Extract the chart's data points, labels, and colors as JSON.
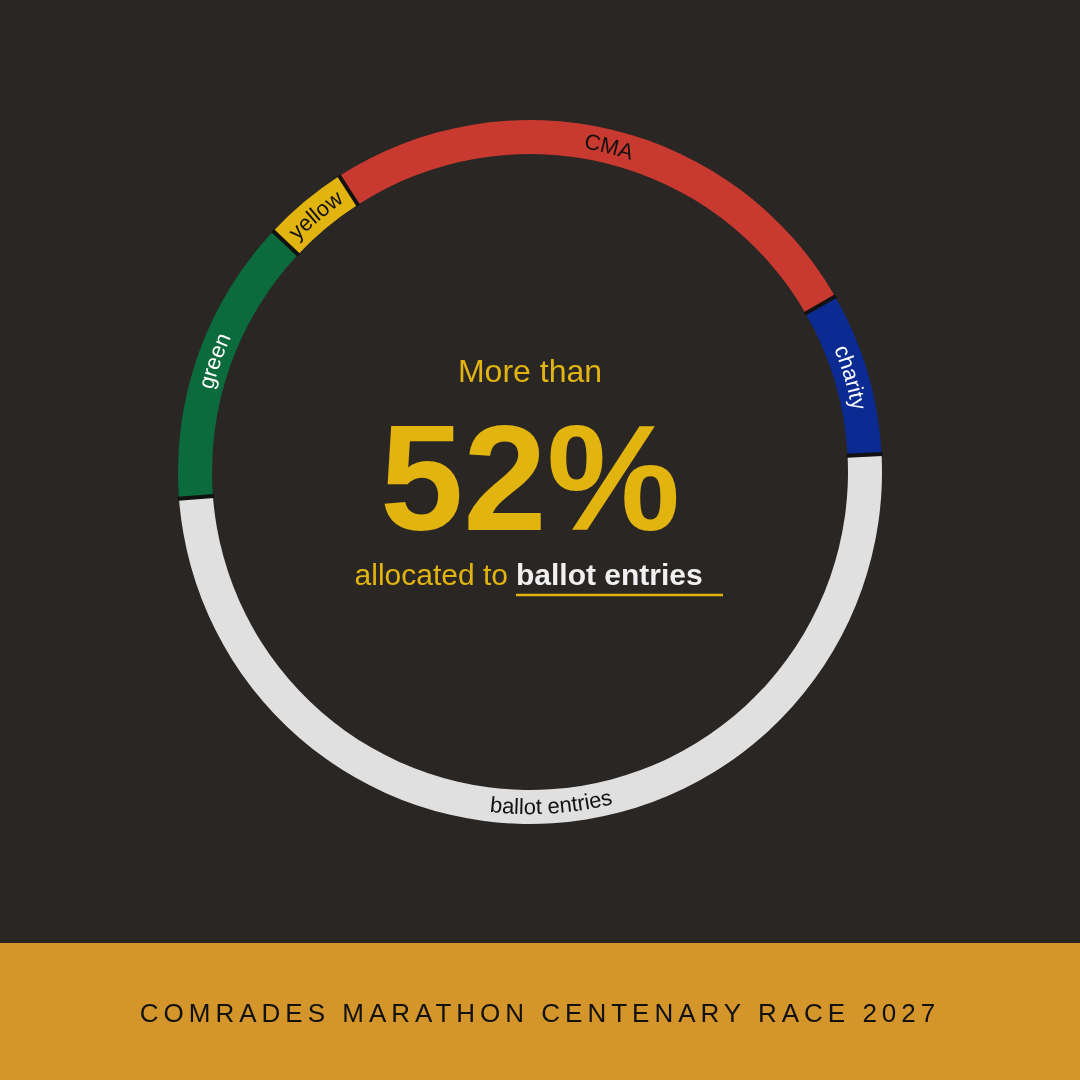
{
  "chart_data": {
    "type": "donut",
    "title": "COMRADES MARATHON CENTENARY RACE 2027",
    "categories": [
      "CMA",
      "charity",
      "ballot entries",
      "green",
      "yellow"
    ],
    "values": [
      25.8,
      7.5,
      49.6,
      13.2,
      3.9
    ],
    "colors": [
      "#c8392f",
      "#0b2a92",
      "#e0e0e0",
      "#0b6b3c",
      "#e2b40f"
    ],
    "annotations": [
      "More than",
      "52%",
      "allocated to",
      "ballot entries"
    ]
  }
}
